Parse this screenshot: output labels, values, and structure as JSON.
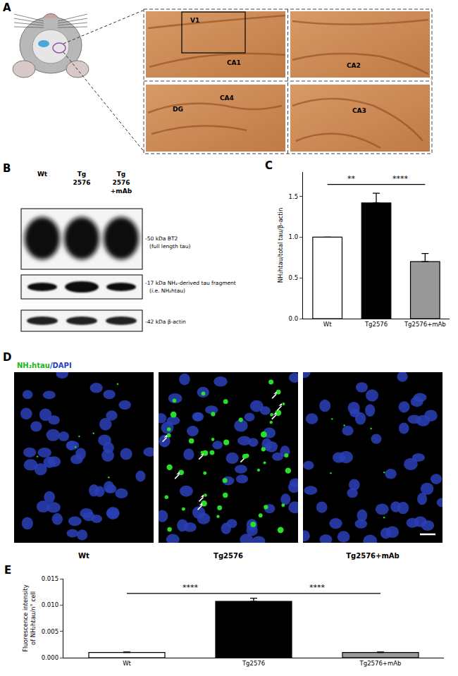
{
  "panels": {
    "A": {
      "label": "A",
      "regions": [
        "V1",
        "CA1",
        "CA2",
        "DG",
        "CA4",
        "CA3"
      ]
    },
    "B": {
      "label": "B",
      "lanes": [
        "Wt",
        "Tg 2576",
        "Tg 2576 +mAb"
      ],
      "bands": [
        {
          "text": "-50 kDa BT2",
          "sub": "(full length tau)"
        },
        {
          "text": "-17 kDa NH₂-derived tau fragment",
          "sub": "(i.e. NH₂htau)"
        },
        {
          "text": "-42 kDa β-actin"
        }
      ]
    },
    "D": {
      "label": "D",
      "title": "NH₂htau/DAPI",
      "images": [
        "Wt",
        "Tg2576",
        "Tg2576+mAb"
      ]
    }
  },
  "chart_data": [
    {
      "type": "bar",
      "title": "C",
      "categories": [
        "Wt",
        "Tg2576",
        "Tg2576+mAb"
      ],
      "values": [
        1.0,
        1.42,
        0.7
      ],
      "errors": [
        0,
        0.12,
        0.1
      ],
      "colors": [
        "#ffffff",
        "#000000",
        "#999999"
      ],
      "ylabel": "NH₂htau/total tau/β-actin",
      "ylim": [
        0,
        1.8
      ],
      "yticks": [
        {
          "value": 0,
          "label": "0.0"
        },
        0.5,
        {
          "value": 1,
          "label": "1.0"
        },
        1.5
      ],
      "annotations": [
        {
          "text": "**",
          "between": [
            0,
            1
          ]
        },
        {
          "text": "****",
          "between": [
            1,
            2
          ]
        }
      ]
    },
    {
      "type": "bar",
      "title": "E",
      "categories": [
        "Wt",
        "Tg2576",
        "Tg2576+mAb"
      ],
      "values": [
        0.001,
        0.0107,
        0.001
      ],
      "errors": [
        0.0001,
        0.0006,
        0.0001
      ],
      "colors": [
        "#ffffff",
        "#000000",
        "#999999"
      ],
      "ylabel": "Fluorescence intensity of NH₂htau/n° cell",
      "ylim": [
        0,
        0.015
      ],
      "yticks": [
        {
          "value": 0,
          "label": "0.000"
        },
        {
          "value": 0.005,
          "label": "0.005"
        },
        {
          "value": 0.01,
          "label": "0.010"
        },
        {
          "value": 0.015,
          "label": "0.015"
        }
      ],
      "annotations": [
        {
          "text": "****",
          "between": [
            0,
            1
          ]
        },
        {
          "text": "****",
          "between": [
            1,
            2
          ]
        }
      ]
    }
  ]
}
